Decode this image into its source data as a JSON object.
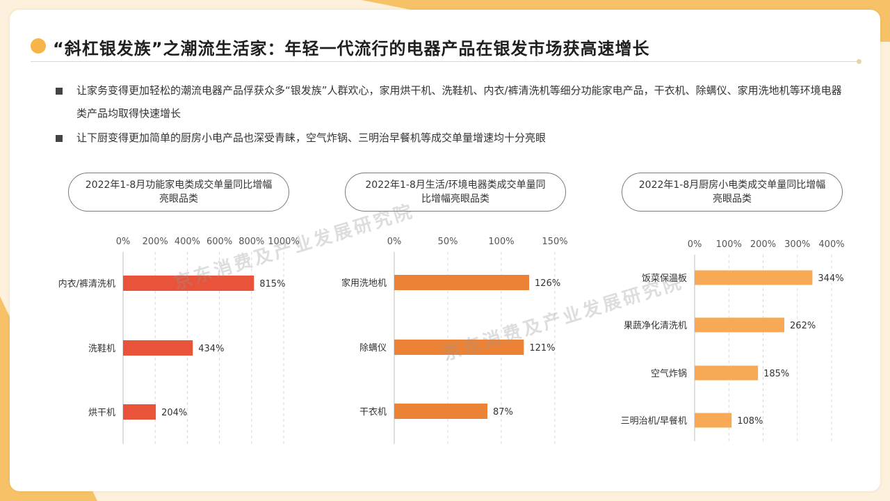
{
  "title": "“斜杠银发族”之潮流生活家：年轻一代流行的电器产品在银发市场获高速增长",
  "bullets": [
    "让家务变得更加轻松的潮流电器产品俘获众多“银发族”人群欢心，家用烘干机、洗鞋机、内衣/裤清洗机等细分功能家电产品，干衣机、除螨仪、家用洗地机等环境电器类产品均取得快速增长",
    "让下厨变得更加简单的厨房小电产品也深受青睐，空气炸锅、三明治早餐机等成交单量增速均十分亮眼"
  ],
  "watermark": "京东消费及产业发展研究院",
  "colors": {
    "accent": "#f7b548",
    "red": "#e8533a",
    "orange": "#ec8235",
    "light_orange": "#f8a955"
  },
  "chart_data": [
    {
      "type": "bar",
      "orientation": "horizontal",
      "title": "2022年1-8月功能家电类成交单量同比增幅亮眼品类",
      "categories": [
        "内衣/裤清洗机",
        "洗鞋机",
        "烘干机"
      ],
      "values": [
        815,
        434,
        204
      ],
      "value_labels": [
        "815%",
        "434%",
        "204%"
      ],
      "ticks": [
        "0%",
        "200%",
        "400%",
        "600%",
        "800%",
        "1000%"
      ],
      "xlim": [
        0,
        1000
      ],
      "color": "#e8533a",
      "grid": "dashed-vertical"
    },
    {
      "type": "bar",
      "orientation": "horizontal",
      "title": "2022年1-8月生活/环境电器类成交单量同比增幅亮眼品类",
      "categories": [
        "家用洗地机",
        "除螨仪",
        "干衣机"
      ],
      "values": [
        126,
        121,
        87
      ],
      "value_labels": [
        "126%",
        "121%",
        "87%"
      ],
      "ticks": [
        "0%",
        "50%",
        "100%",
        "150%"
      ],
      "xlim": [
        0,
        150
      ],
      "color": "#ec8235",
      "grid": "dashed-vertical"
    },
    {
      "type": "bar",
      "orientation": "horizontal",
      "title": "2022年1-8月厨房小电类成交单量同比增幅亮眼品类",
      "categories": [
        "饭菜保温板",
        "果蔬净化清洗机",
        "空气炸锅",
        "三明治机/早餐机"
      ],
      "values": [
        344,
        262,
        185,
        108
      ],
      "value_labels": [
        "344%",
        "262%",
        "185%",
        "108%"
      ],
      "ticks": [
        "0%",
        "100%",
        "200%",
        "300%",
        "400%"
      ],
      "xlim": [
        0,
        400
      ],
      "color": "#f8a955",
      "grid": "dashed-vertical"
    }
  ]
}
